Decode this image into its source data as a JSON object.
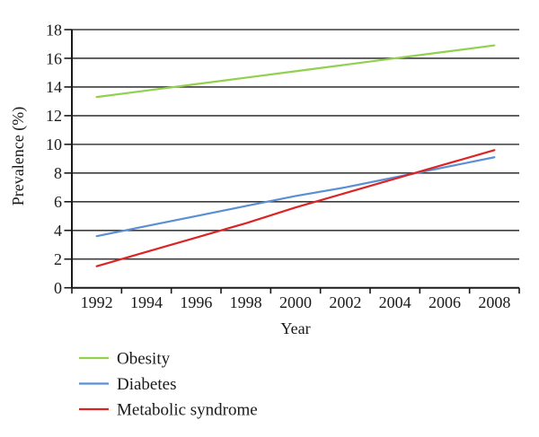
{
  "chart_data": {
    "type": "line",
    "title": "",
    "xlabel": "Year",
    "ylabel": "Prevalence (%)",
    "x": [
      1992,
      1994,
      1996,
      1998,
      2000,
      2002,
      2004,
      2006,
      2008
    ],
    "x_tick_labels": [
      "1992",
      "1994",
      "1996",
      "1998",
      "2000",
      "2002",
      "2004",
      "2006",
      "2008"
    ],
    "y_ticks": [
      0,
      2,
      4,
      6,
      8,
      10,
      12,
      14,
      16,
      18
    ],
    "ylim": [
      0,
      18
    ],
    "grid": "horizontal",
    "legend_position": "bottom-left",
    "series": [
      {
        "name": "Obesity",
        "color": "#92d050",
        "values": [
          13.3,
          13.75,
          14.2,
          14.65,
          15.1,
          15.55,
          16.0,
          16.45,
          16.9
        ]
      },
      {
        "name": "Diabetes",
        "color": "#5b8fd5",
        "values": [
          3.6,
          4.3,
          5.0,
          5.7,
          6.4,
          7.0,
          7.7,
          8.4,
          9.1
        ]
      },
      {
        "name": "Metabolic syndrome",
        "color": "#dd2424",
        "values": [
          1.5,
          2.5,
          3.5,
          4.5,
          5.6,
          6.6,
          7.6,
          8.6,
          9.6
        ]
      }
    ],
    "colors": {
      "gridline": "#3d3d3d",
      "axis": "#1a1a1a",
      "text": "#1a1a1a",
      "background": "#ffffff"
    }
  }
}
